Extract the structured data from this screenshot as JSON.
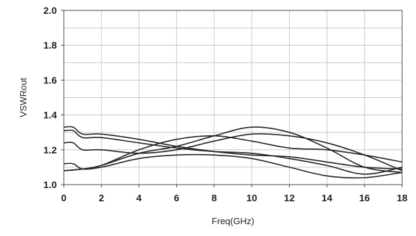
{
  "chart_data": {
    "type": "line",
    "xlabel": "Freq(GHz)",
    "ylabel": "VSWRout",
    "xlim": [
      0,
      18
    ],
    "ylim": [
      1.0,
      2.0
    ],
    "x_ticks": [
      "0",
      "2",
      "4",
      "6",
      "8",
      "10",
      "12",
      "14",
      "16",
      "18"
    ],
    "y_ticks": [
      "1.0",
      "1.2",
      "1.4",
      "1.6",
      "1.8",
      "2.0"
    ],
    "grid": true,
    "line_color": "#222222",
    "grid_color": "#c8c8c8",
    "series": [
      {
        "x": [
          0,
          0.5,
          1,
          2,
          4,
          6,
          8,
          10,
          12,
          14,
          16,
          18
        ],
        "values": [
          1.33,
          1.33,
          1.29,
          1.29,
          1.26,
          1.22,
          1.19,
          1.17,
          1.16,
          1.13,
          1.1,
          1.09
        ]
      },
      {
        "x": [
          0,
          0.5,
          1,
          2,
          4,
          6,
          8,
          10,
          12,
          14,
          16,
          18
        ],
        "values": [
          1.31,
          1.31,
          1.27,
          1.27,
          1.24,
          1.21,
          1.19,
          1.18,
          1.15,
          1.11,
          1.06,
          1.1
        ]
      },
      {
        "x": [
          0,
          0.5,
          1,
          2,
          4,
          6,
          8,
          10,
          12,
          14,
          16,
          18
        ],
        "values": [
          1.24,
          1.24,
          1.2,
          1.2,
          1.18,
          1.2,
          1.25,
          1.29,
          1.28,
          1.24,
          1.17,
          1.08
        ]
      },
      {
        "x": [
          0,
          1,
          2,
          4,
          6,
          8,
          10,
          12,
          14,
          16,
          18
        ],
        "values": [
          1.08,
          1.09,
          1.11,
          1.18,
          1.22,
          1.28,
          1.33,
          1.3,
          1.21,
          1.1,
          1.07
        ]
      },
      {
        "x": [
          0,
          1,
          2,
          4,
          6,
          8,
          10,
          12,
          14,
          16,
          18
        ],
        "values": [
          1.08,
          1.09,
          1.11,
          1.2,
          1.26,
          1.28,
          1.25,
          1.21,
          1.2,
          1.17,
          1.13
        ]
      },
      {
        "x": [
          0,
          0.5,
          1,
          2,
          4,
          6,
          8,
          10,
          12,
          14,
          16,
          18
        ],
        "values": [
          1.12,
          1.12,
          1.09,
          1.1,
          1.15,
          1.17,
          1.17,
          1.15,
          1.1,
          1.05,
          1.04,
          1.07
        ]
      }
    ]
  }
}
